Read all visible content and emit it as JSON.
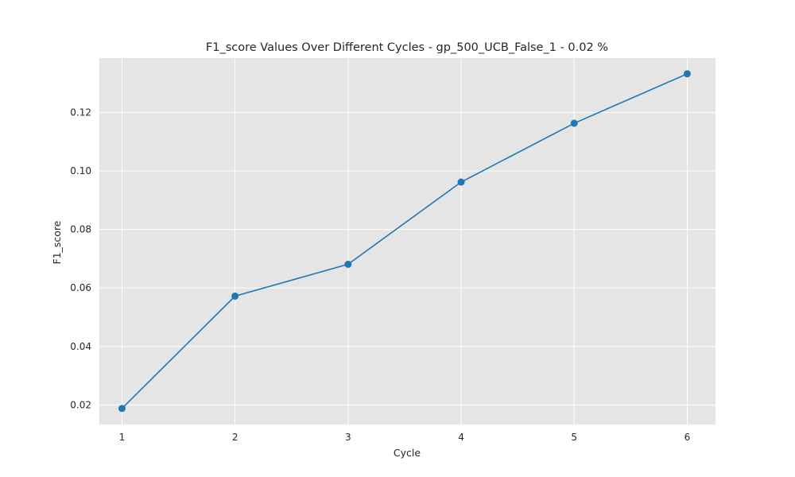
{
  "chart_data": {
    "type": "line",
    "title": "F1_score Values Over Different Cycles - gp_500_UCB_False_1 - 0.02 %",
    "xlabel": "Cycle",
    "ylabel": "F1_score",
    "x": [
      1,
      2,
      3,
      4,
      5,
      6
    ],
    "series": [
      {
        "values": [
          0.0188,
          0.0572,
          0.0681,
          0.0962,
          0.1163,
          0.1332
        ]
      }
    ],
    "xticks": [
      "1",
      "2",
      "3",
      "4",
      "5",
      "6"
    ],
    "yticks": [
      "0.02",
      "0.04",
      "0.06",
      "0.08",
      "0.10",
      "0.12"
    ],
    "xlim": [
      0.8,
      6.25
    ],
    "ylim": [
      0.0133,
      0.1386
    ],
    "grid": true,
    "colors": {
      "background": "#e5e5e5",
      "line": "#1f77b4",
      "grid": "#ffffff"
    }
  }
}
